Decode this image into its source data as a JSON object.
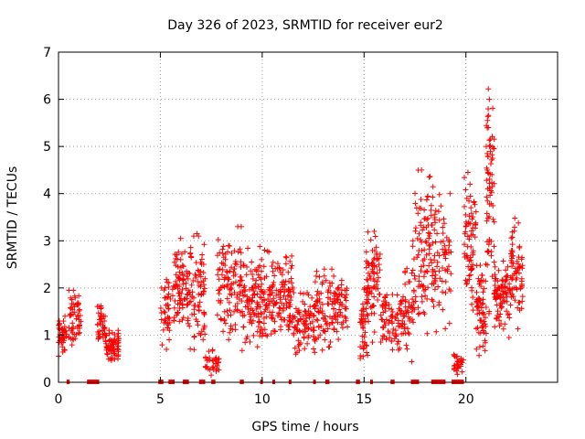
{
  "chart_data": {
    "type": "scatter",
    "title": "Day 326 of 2023, SRMTID for receiver eur2",
    "xlabel": "GPS time / hours",
    "ylabel": "SRMTID / TECUs",
    "xlim": [
      0,
      24.5
    ],
    "ylim": [
      0,
      7
    ],
    "x_ticks": [
      0,
      5,
      10,
      15,
      20
    ],
    "y_ticks": [
      0,
      1,
      2,
      3,
      4,
      5,
      6,
      7
    ],
    "grid": true,
    "marker": "+",
    "color": "#ff0000",
    "series": [
      {
        "name": "SRMTID eur2",
        "clusters": [
          {
            "x_start": 0.0,
            "x_end": 0.4,
            "y_low": 0.4,
            "y_high": 1.4,
            "count": 40
          },
          {
            "x_start": 0.5,
            "x_end": 1.1,
            "y_low": 0.5,
            "y_high": 1.95,
            "count": 55
          },
          {
            "x_start": 1.9,
            "x_end": 2.3,
            "y_low": 0.55,
            "y_high": 1.75,
            "count": 40
          },
          {
            "x_start": 2.3,
            "x_end": 3.0,
            "y_low": 0.35,
            "y_high": 1.1,
            "count": 70
          },
          {
            "x_start": 5.0,
            "x_end": 5.5,
            "y_low": 0.4,
            "y_high": 2.4,
            "count": 40
          },
          {
            "x_start": 5.6,
            "x_end": 6.3,
            "y_low": 0.8,
            "y_high": 3.0,
            "count": 70
          },
          {
            "x_start": 6.3,
            "x_end": 7.2,
            "y_low": 0.3,
            "y_high": 3.1,
            "count": 90
          },
          {
            "x_start": 7.2,
            "x_end": 7.9,
            "y_low": 0.0,
            "y_high": 0.7,
            "count": 35
          },
          {
            "x_start": 7.8,
            "x_end": 9.0,
            "y_low": 0.5,
            "y_high": 3.3,
            "count": 110
          },
          {
            "x_start": 9.0,
            "x_end": 10.3,
            "y_low": 0.3,
            "y_high": 2.9,
            "count": 130
          },
          {
            "x_start": 10.3,
            "x_end": 11.5,
            "y_low": 0.5,
            "y_high": 2.85,
            "count": 120
          },
          {
            "x_start": 11.5,
            "x_end": 12.6,
            "y_low": 0.4,
            "y_high": 1.9,
            "count": 90
          },
          {
            "x_start": 12.6,
            "x_end": 13.5,
            "y_low": 0.3,
            "y_high": 2.4,
            "count": 70
          },
          {
            "x_start": 13.5,
            "x_end": 14.2,
            "y_low": 0.7,
            "y_high": 2.25,
            "count": 60
          },
          {
            "x_start": 14.8,
            "x_end": 15.2,
            "y_low": 0.0,
            "y_high": 2.0,
            "count": 45
          },
          {
            "x_start": 15.1,
            "x_end": 15.8,
            "y_low": 0.7,
            "y_high": 3.2,
            "count": 75
          },
          {
            "x_start": 15.8,
            "x_end": 17.0,
            "y_low": 0.4,
            "y_high": 2.0,
            "count": 90
          },
          {
            "x_start": 17.0,
            "x_end": 17.5,
            "y_low": 0.2,
            "y_high": 3.0,
            "count": 45
          },
          {
            "x_start": 17.5,
            "x_end": 18.5,
            "y_low": 0.7,
            "y_high": 4.5,
            "count": 110
          },
          {
            "x_start": 18.5,
            "x_end": 19.3,
            "y_low": 0.6,
            "y_high": 4.0,
            "count": 55
          },
          {
            "x_start": 19.4,
            "x_end": 19.9,
            "y_low": 0.0,
            "y_high": 0.7,
            "count": 30
          },
          {
            "x_start": 19.9,
            "x_end": 20.5,
            "y_low": 0.8,
            "y_high": 4.5,
            "count": 70
          },
          {
            "x_start": 20.5,
            "x_end": 21.0,
            "y_low": 0.2,
            "y_high": 2.6,
            "count": 65
          },
          {
            "x_start": 21.0,
            "x_end": 21.4,
            "y_low": 0.9,
            "y_high": 6.2,
            "count": 70
          },
          {
            "x_start": 21.4,
            "x_end": 22.2,
            "y_low": 0.8,
            "y_high": 2.6,
            "count": 90
          },
          {
            "x_start": 22.2,
            "x_end": 22.8,
            "y_low": 0.9,
            "y_high": 3.5,
            "count": 65
          }
        ],
        "peak_points": [
          {
            "x": 21.1,
            "y": 6.22
          },
          {
            "x": 21.15,
            "y": 6.0
          },
          {
            "x": 21.1,
            "y": 5.4
          },
          {
            "x": 21.0,
            "y": 5.0
          },
          {
            "x": 18.2,
            "y": 4.35
          },
          {
            "x": 20.1,
            "y": 4.45
          },
          {
            "x": 18.7,
            "y": 3.98
          },
          {
            "x": 20.2,
            "y": 4.2
          },
          {
            "x": 22.4,
            "y": 3.48
          },
          {
            "x": 8.8,
            "y": 3.3
          },
          {
            "x": 15.5,
            "y": 3.2
          },
          {
            "x": 6.0,
            "y": 3.05
          },
          {
            "x": 6.8,
            "y": 3.15
          }
        ],
        "zero_segments": [
          [
            0.4,
            0.55
          ],
          [
            1.4,
            2.0
          ],
          [
            4.9,
            5.15
          ],
          [
            5.4,
            5.7
          ],
          [
            6.1,
            6.4
          ],
          [
            6.9,
            7.2
          ],
          [
            7.5,
            7.7
          ],
          [
            8.9,
            9.1
          ],
          [
            9.9,
            10.0
          ],
          [
            10.5,
            10.6
          ],
          [
            11.3,
            11.4
          ],
          [
            12.5,
            12.6
          ],
          [
            13.1,
            13.3
          ],
          [
            14.6,
            14.8
          ],
          [
            15.3,
            15.4
          ],
          [
            16.3,
            16.5
          ],
          [
            17.3,
            17.7
          ],
          [
            18.3,
            19.0
          ],
          [
            19.3,
            19.9
          ]
        ]
      }
    ]
  }
}
